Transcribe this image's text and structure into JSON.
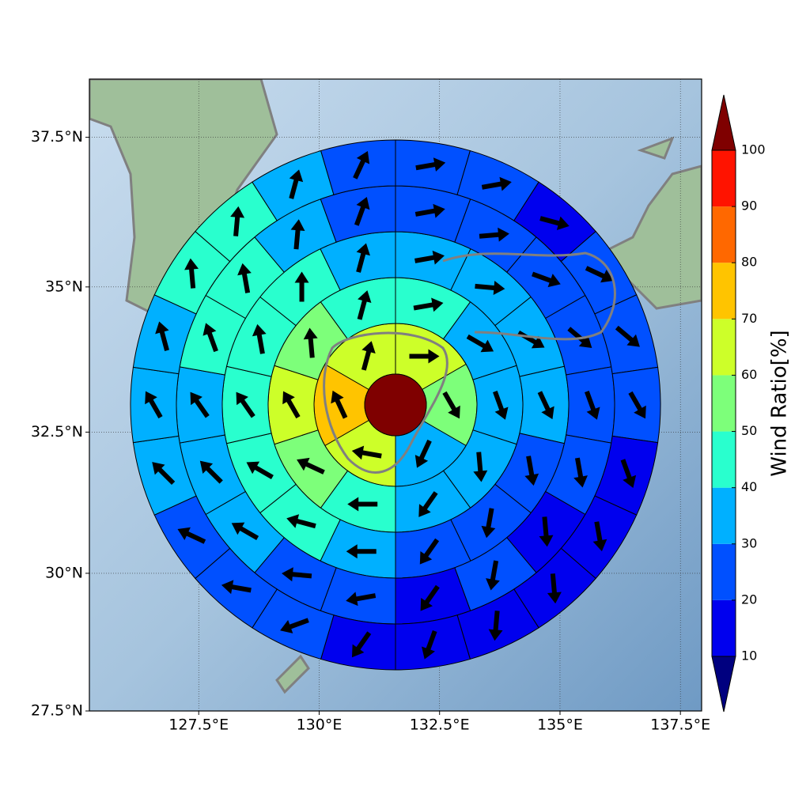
{
  "chart_data": {
    "type": "polar-grid",
    "xlim": [
      125.23,
      137.94
    ],
    "ylim": [
      27.5,
      38.45
    ],
    "projection": "mercator",
    "grid": true,
    "xticks": [
      {
        "value": 127.5,
        "label": "127.5°E"
      },
      {
        "value": 130,
        "label": "130°E"
      },
      {
        "value": 132.5,
        "label": "132.5°E"
      },
      {
        "value": 135,
        "label": "135°E"
      },
      {
        "value": 137.5,
        "label": "137.5°E"
      }
    ],
    "yticks": [
      {
        "value": 27.5,
        "label": "27.5°N"
      },
      {
        "value": 30,
        "label": "30°N"
      },
      {
        "value": 32.5,
        "label": "32.5°N"
      },
      {
        "value": 35,
        "label": "35°N"
      },
      {
        "value": 37.5,
        "label": "37.5°N"
      }
    ],
    "center": {
      "value": 105
    },
    "rings": [
      {
        "values": [
          65,
          55,
          35,
          65,
          75,
          65
        ],
        "directions": [
          90,
          150,
          205,
          280,
          335,
          15
        ]
      },
      {
        "values": [
          45,
          35,
          35,
          35,
          35,
          45,
          55,
          65,
          55,
          45
        ],
        "directions": [
          80,
          120,
          160,
          175,
          215,
          270,
          295,
          330,
          355,
          15
        ]
      },
      {
        "values": [
          35,
          35,
          35,
          35,
          25,
          25,
          25,
          35,
          45,
          45,
          45,
          45,
          45,
          35
        ],
        "directions": [
          80,
          95,
          120,
          155,
          170,
          190,
          215,
          270,
          285,
          300,
          325,
          350,
          0,
          15
        ]
      },
      {
        "values": [
          25,
          25,
          25,
          25,
          25,
          25,
          15,
          25,
          15,
          25,
          25,
          35,
          35,
          35,
          45,
          45,
          35,
          25
        ],
        "directions": [
          80,
          85,
          110,
          130,
          160,
          170,
          175,
          190,
          215,
          260,
          275,
          300,
          315,
          325,
          340,
          350,
          5,
          20
        ]
      },
      {
        "values": [
          25,
          25,
          15,
          25,
          25,
          25,
          15,
          15,
          15,
          15,
          15,
          15,
          25,
          25,
          25,
          35,
          35,
          35,
          45,
          45,
          35,
          25
        ],
        "directions": [
          80,
          80,
          105,
          115,
          130,
          150,
          160,
          170,
          175,
          185,
          200,
          215,
          250,
          280,
          295,
          315,
          330,
          345,
          355,
          5,
          15,
          25
        ]
      }
    ],
    "colorbar": {
      "label": "Wind Ratio[%]",
      "ticks": [
        10,
        20,
        30,
        40,
        50,
        60,
        70,
        80,
        90,
        100
      ],
      "colors": [
        "#00007f",
        "#0000ee",
        "#0050ff",
        "#00b0ff",
        "#29ffce",
        "#7dff7a",
        "#cdff29",
        "#ffc400",
        "#ff6800",
        "#ff1300",
        "#7f0000"
      ]
    }
  }
}
